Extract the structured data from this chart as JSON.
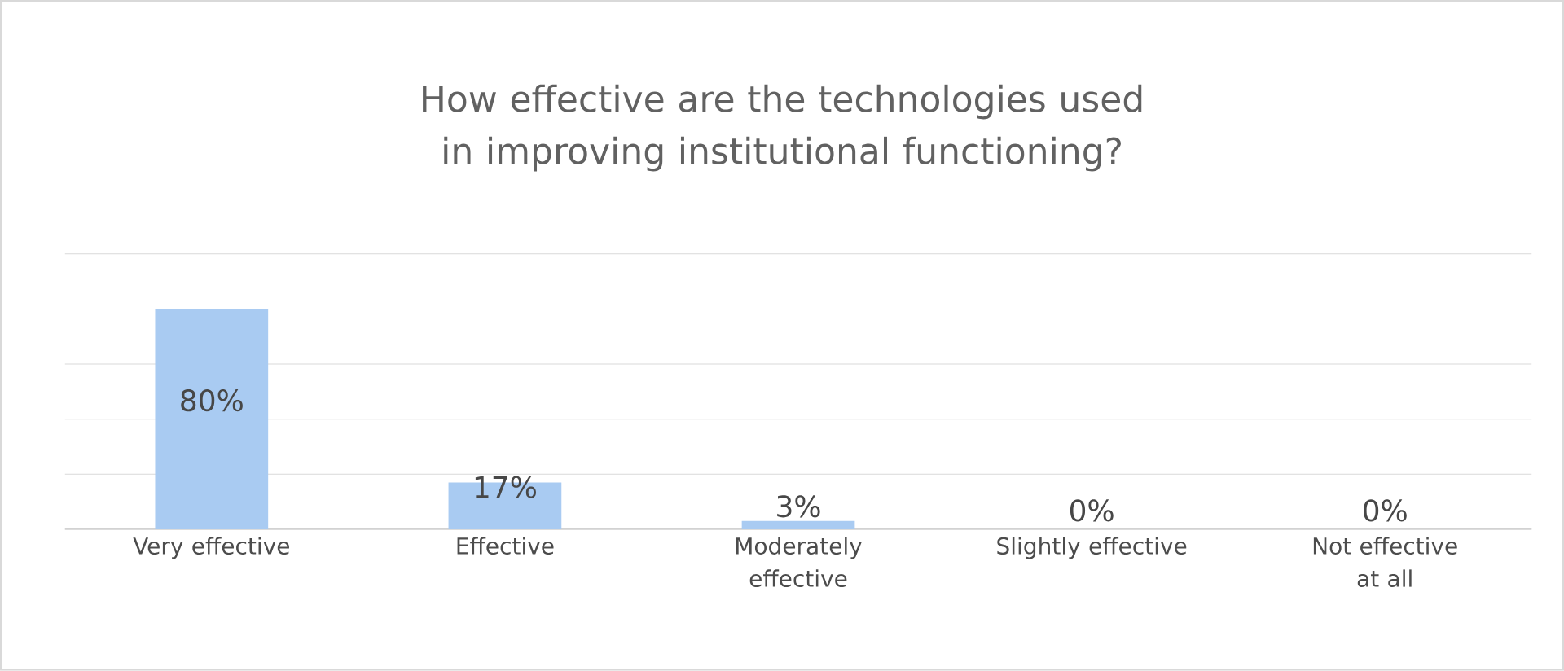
{
  "chart_data": {
    "type": "bar",
    "title": "How effective are the technologies used in improving institutional functioning?",
    "categories": [
      "Very effective",
      "Effective",
      "Moderately effective",
      "Slightly effective",
      "Not effective at all"
    ],
    "values": [
      80,
      17,
      3,
      0,
      0
    ],
    "value_labels": [
      "80%",
      "17%",
      "3%",
      "0%",
      "0%"
    ],
    "color": "#a9cbf2",
    "ylim": [
      0,
      100
    ],
    "yticks": [
      {
        "value": 0,
        "label": null
      },
      {
        "value": 20,
        "label": null
      },
      {
        "value": 40,
        "label": null
      },
      {
        "value": 60,
        "label": null
      },
      {
        "value": 80,
        "label": null
      },
      {
        "value": 100,
        "label": null
      }
    ],
    "grid": "y",
    "tick_labels": "x"
  }
}
